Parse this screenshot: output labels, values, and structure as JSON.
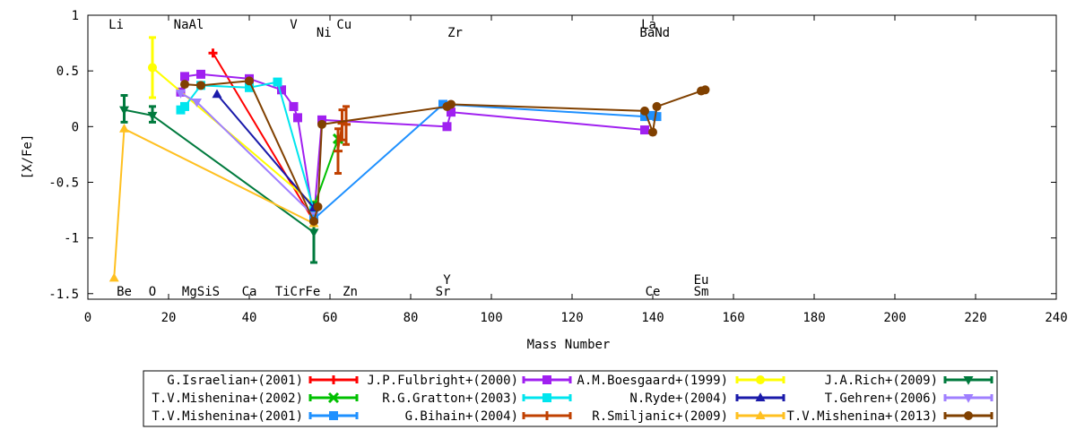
{
  "chart_data": {
    "type": "line",
    "xlabel": "Mass Number",
    "ylabel": "[X/Fe]",
    "xlim": [
      0,
      240
    ],
    "ylim": [
      -1.55,
      1
    ],
    "x_ticks": [
      0,
      20,
      40,
      60,
      80,
      100,
      120,
      140,
      160,
      180,
      200,
      220,
      240
    ],
    "x_tick_labels": [
      "0",
      "20",
      "40",
      "60",
      "80",
      "100",
      "120",
      "140",
      "160",
      "180",
      "200",
      "220",
      "240"
    ],
    "y_ticks": [
      -1.5,
      -1,
      -0.5,
      0,
      0.5,
      1
    ],
    "y_tick_labels": [
      "-1.5",
      "-1",
      "-0.5",
      "0",
      "0.5",
      "1"
    ],
    "grid": false,
    "legend_position": "bottom",
    "element_labels": [
      {
        "text": "Li",
        "x": 7,
        "row": "top1"
      },
      {
        "text": "NaAl",
        "x": 25,
        "row": "top1"
      },
      {
        "text": "V",
        "x": 51,
        "row": "top1"
      },
      {
        "text": "Cu",
        "x": 63.5,
        "row": "top1"
      },
      {
        "text": "La",
        "x": 139,
        "row": "top1"
      },
      {
        "text": "Ni",
        "x": 58.5,
        "row": "top2"
      },
      {
        "text": "Zr",
        "x": 91,
        "row": "top2"
      },
      {
        "text": "BaNd",
        "x": 140.5,
        "row": "top2"
      },
      {
        "text": "Y",
        "x": 89,
        "row": "bot1"
      },
      {
        "text": "Eu",
        "x": 152,
        "row": "bot1"
      },
      {
        "text": "Be",
        "x": 9,
        "row": "bot2"
      },
      {
        "text": "O",
        "x": 16,
        "row": "bot2"
      },
      {
        "text": "MgSiS",
        "x": 28,
        "row": "bot2"
      },
      {
        "text": "Ca",
        "x": 40,
        "row": "bot2"
      },
      {
        "text": "TiCrFe",
        "x": 52,
        "row": "bot2"
      },
      {
        "text": "Zn",
        "x": 65,
        "row": "bot2"
      },
      {
        "text": "Sr",
        "x": 88,
        "row": "bot2"
      },
      {
        "text": "Ce",
        "x": 140,
        "row": "bot2"
      },
      {
        "text": "Sm",
        "x": 152,
        "row": "bot2"
      }
    ],
    "series": [
      {
        "name": "G.Israelian+(2001)",
        "color": "#ff0000",
        "marker": "plus",
        "points": [
          [
            31,
            0.66
          ],
          [
            56,
            -0.85
          ]
        ],
        "errors": []
      },
      {
        "name": "J.P.Fulbright+(2000)",
        "color": "#a020f0",
        "marker": "square",
        "points": [
          [
            23,
            0.31
          ],
          [
            24,
            0.45
          ],
          [
            28,
            0.47
          ],
          [
            40,
            0.43
          ],
          [
            48,
            0.33
          ],
          [
            51,
            0.18
          ],
          [
            52,
            0.08
          ],
          [
            56,
            -0.83
          ],
          [
            58,
            0.06
          ],
          [
            89,
            0.0
          ],
          [
            90,
            0.13
          ],
          [
            138,
            -0.03
          ]
        ],
        "errors": []
      },
      {
        "name": "A.M.Boesgaard+(1999)",
        "color": "#ffff00",
        "marker": "circle",
        "points": [
          [
            16,
            0.53
          ],
          [
            56,
            -0.7
          ]
        ],
        "errors": [
          [
            16,
            0.26,
            0.8
          ]
        ]
      },
      {
        "name": "J.A.Rich+(2009)",
        "color": "#007a3d",
        "marker": "triangle-down",
        "points": [
          [
            9,
            0.15
          ],
          [
            16,
            0.1
          ],
          [
            56,
            -0.95
          ]
        ],
        "errors": [
          [
            9,
            0.04,
            0.28
          ],
          [
            16,
            0.04,
            0.18
          ],
          [
            56,
            -1.22,
            -0.68
          ]
        ]
      },
      {
        "name": "T.V.Mishenina+(2002)",
        "color": "#00c000",
        "marker": "x",
        "points": [
          [
            56,
            -0.72
          ],
          [
            62,
            -0.11
          ]
        ],
        "errors": []
      },
      {
        "name": "R.G.Gratton+(2003)",
        "color": "#00e5ee",
        "marker": "square",
        "points": [
          [
            23,
            0.15
          ],
          [
            24,
            0.18
          ],
          [
            28,
            0.37
          ],
          [
            40,
            0.35
          ],
          [
            47,
            0.4
          ],
          [
            56,
            -0.75
          ]
        ],
        "errors": []
      },
      {
        "name": "N.Ryde+(2004)",
        "color": "#1a1aaa",
        "marker": "triangle",
        "points": [
          [
            32,
            0.29
          ],
          [
            56,
            -0.73
          ]
        ],
        "errors": []
      },
      {
        "name": "T.Gehren+(2006)",
        "color": "#9f7fff",
        "marker": "triangle-down",
        "points": [
          [
            23,
            0.3
          ],
          [
            27,
            0.22
          ],
          [
            56,
            -0.8
          ]
        ],
        "errors": []
      },
      {
        "name": "T.V.Mishenina+(2001)",
        "color": "#1e90ff",
        "marker": "square",
        "points": [
          [
            56,
            -0.83
          ],
          [
            88,
            0.2
          ],
          [
            138,
            0.09
          ],
          [
            140,
            0.1
          ],
          [
            141,
            0.09
          ]
        ],
        "errors": []
      },
      {
        "name": "G.Bihain+(2004)",
        "color": "#c04000",
        "marker": "plus",
        "points": [
          [
            62,
            -0.22
          ],
          [
            63,
            0.03
          ],
          [
            64,
            0.02
          ]
        ],
        "errors": [
          [
            62,
            -0.42,
            -0.02
          ],
          [
            63,
            -0.12,
            0.15
          ],
          [
            64,
            -0.16,
            0.18
          ]
        ]
      },
      {
        "name": "R.Smiljanic+(2009)",
        "color": "#ffc020",
        "marker": "triangle",
        "points": [
          [
            6.5,
            -1.36
          ],
          [
            9,
            -0.02
          ],
          [
            56,
            -0.87
          ]
        ],
        "errors": []
      },
      {
        "name": "T.V.Mishenina+(2013)",
        "color": "#804000",
        "marker": "circle",
        "points": [
          [
            24,
            0.38
          ],
          [
            28,
            0.37
          ],
          [
            40,
            0.41
          ],
          [
            56,
            -0.85
          ],
          [
            57,
            -0.72
          ],
          [
            58,
            0.02
          ],
          [
            89,
            0.18
          ],
          [
            90,
            0.2
          ],
          [
            138,
            0.14
          ],
          [
            140,
            -0.05
          ],
          [
            141,
            0.18
          ],
          [
            152,
            0.32
          ],
          [
            153,
            0.33
          ]
        ],
        "errors": []
      }
    ],
    "legend_columns": [
      [
        "G.Israelian+(2001)",
        "T.V.Mishenina+(2002)",
        "T.V.Mishenina+(2001)"
      ],
      [
        "J.P.Fulbright+(2000)",
        "R.G.Gratton+(2003)",
        "G.Bihain+(2004)"
      ],
      [
        "A.M.Boesgaard+(1999)",
        "N.Ryde+(2004)",
        "R.Smiljanic+(2009)"
      ],
      [
        "J.A.Rich+(2009)",
        "T.Gehren+(2006)",
        "T.V.Mishenina+(2013)"
      ]
    ]
  }
}
